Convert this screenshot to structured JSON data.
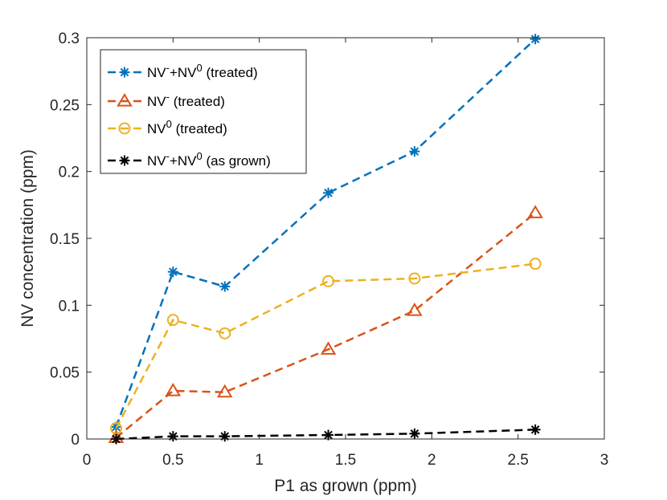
{
  "chart_data": {
    "type": "line",
    "title": "",
    "xlabel": "P1 as grown (ppm)",
    "ylabel": "NV concentration (ppm)",
    "xlim": [
      0,
      3
    ],
    "ylim": [
      0,
      0.3
    ],
    "xticks": [
      0,
      0.5,
      1,
      1.5,
      2,
      2.5,
      3
    ],
    "xtick_labels": [
      "0",
      "0.5",
      "1",
      "1.5",
      "2",
      "2.5",
      "3"
    ],
    "yticks": [
      0,
      0.05,
      0.1,
      0.15,
      0.2,
      0.25,
      0.3
    ],
    "ytick_labels": [
      "0",
      "0.05",
      "0.1",
      "0.15",
      "0.2",
      "0.25",
      "0.3"
    ],
    "grid": false,
    "legend_position": "top-left",
    "x": [
      0.17,
      0.5,
      0.8,
      1.4,
      1.9,
      2.6
    ],
    "series": [
      {
        "name": "NV⁻+NV⁰ (treated)",
        "legend_parts": {
          "base1": "NV",
          "sup1": "-",
          "base2": "+NV",
          "sup2": "0",
          "suffix": " (treated)"
        },
        "marker": "asterisk",
        "color": "#0072BD",
        "values": [
          0.009,
          0.125,
          0.114,
          0.184,
          0.215,
          0.299
        ]
      },
      {
        "name": "NV⁻ (treated)",
        "legend_parts": {
          "base1": "NV",
          "sup1": "-",
          "base2": "",
          "sup2": "",
          "suffix": " (treated)"
        },
        "marker": "triangle",
        "color": "#D95319",
        "values": [
          0.001,
          0.036,
          0.035,
          0.067,
          0.096,
          0.169
        ]
      },
      {
        "name": "NV⁰ (treated)",
        "legend_parts": {
          "base1": "NV",
          "sup1": "0",
          "base2": "",
          "sup2": "",
          "suffix": " (treated)"
        },
        "marker": "circle",
        "color": "#EDB120",
        "values": [
          0.008,
          0.089,
          0.079,
          0.118,
          0.12,
          0.131
        ]
      },
      {
        "name": "NV⁻+NV⁰ (as grown)",
        "legend_parts": {
          "base1": "NV",
          "sup1": "-",
          "base2": "+NV",
          "sup2": "0",
          "suffix": " (as grown)"
        },
        "marker": "asterisk",
        "color": "#000000",
        "values": [
          0.0,
          0.002,
          0.002,
          0.003,
          0.004,
          0.007
        ]
      }
    ]
  }
}
